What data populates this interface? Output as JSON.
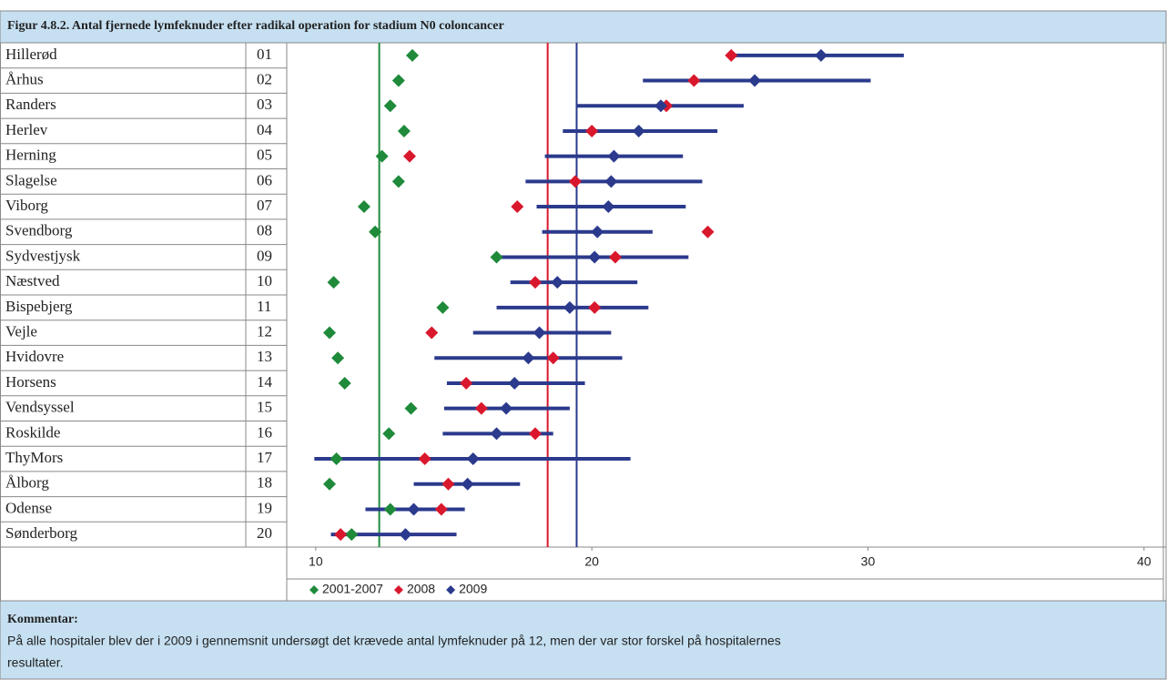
{
  "chart_data": {
    "type": "dot_interval",
    "title": "Figur 4.8.2. Antal fjernede lymfeknuder efter radikal operation for stadium N0 coloncancer",
    "categories": [
      "Hillerød",
      "Århus",
      "Randers",
      "Herlev",
      "Herning",
      "Slagelse",
      "Viborg",
      "Svendborg",
      "Sydvestjysk",
      "Næstved",
      "Bispebjerg",
      "Vejle",
      "Hvidovre",
      "Horsens",
      "Vendsyssel",
      "Roskilde",
      "ThyMors",
      "Ålborg",
      "Odense",
      "Sønderborg"
    ],
    "codes": [
      "01",
      "02",
      "03",
      "04",
      "05",
      "06",
      "07",
      "08",
      "09",
      "10",
      "11",
      "12",
      "13",
      "14",
      "15",
      "16",
      "17",
      "18",
      "19",
      "20"
    ],
    "series": [
      {
        "name": "2001-2007",
        "color": "#1e8a3a",
        "values": [
          13.5,
          13.0,
          12.7,
          13.2,
          12.4,
          13.0,
          11.75,
          12.15,
          16.55,
          10.65,
          14.6,
          10.5,
          10.8,
          11.05,
          13.45,
          12.65,
          10.75,
          10.5,
          12.7,
          11.3
        ]
      },
      {
        "name": "2008",
        "color": "#d9182d",
        "values": [
          25.05,
          23.7,
          22.7,
          20.0,
          13.4,
          19.4,
          17.3,
          24.2,
          20.85,
          17.95,
          20.1,
          14.2,
          18.6,
          15.45,
          16.0,
          17.95,
          13.95,
          14.8,
          14.55,
          10.9
        ]
      },
      {
        "name": "2009",
        "color": "#2b3a8c",
        "values": [
          28.3,
          25.9,
          22.5,
          21.7,
          20.8,
          20.7,
          20.6,
          20.2,
          20.1,
          18.75,
          19.2,
          18.1,
          17.7,
          17.2,
          16.9,
          16.55,
          15.7,
          15.5,
          13.55,
          13.25
        ],
        "low": [
          25.1,
          21.85,
          19.45,
          18.95,
          18.3,
          17.6,
          18.0,
          18.2,
          16.7,
          17.05,
          16.55,
          15.7,
          14.3,
          14.75,
          14.65,
          14.6,
          9.95,
          13.55,
          11.8,
          10.55
        ],
        "high": [
          31.3,
          30.1,
          25.5,
          24.55,
          23.3,
          24.0,
          23.4,
          22.2,
          23.5,
          21.65,
          22.05,
          20.7,
          21.1,
          19.75,
          19.2,
          18.6,
          21.4,
          17.4,
          15.4,
          15.1
        ]
      }
    ],
    "reference_lines": [
      {
        "value": 12.3,
        "color": "#1e8a3a"
      },
      {
        "value": 18.4,
        "color": "#d9182d"
      },
      {
        "value": 19.45,
        "color": "#2b3a8c"
      }
    ],
    "xlim": [
      8.95,
      40.7
    ],
    "xticks": [
      10,
      20,
      30,
      40
    ],
    "comment": {
      "heading": "Kommentar:",
      "lines": [
        "På alle hospitaler blev der i 2009 i gennemsnit undersøgt det krævede antal lymfeknuder på 12, men der var stor forskel på hospitalernes",
        "resultater."
      ]
    }
  }
}
